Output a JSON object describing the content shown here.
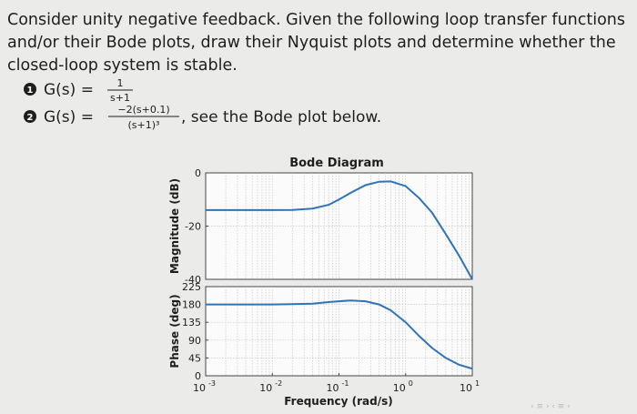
{
  "problem": {
    "lines": [
      "Consider unity negative feedback. Given the following loop transfer functions",
      "and/or their Bode plots, draw their Nyquist plots and determine whether the",
      "closed-loop system is stable."
    ],
    "items": [
      {
        "number": "1",
        "lhs": "G(s) =",
        "numerator": "1",
        "denominator": "s+1",
        "suffix": ""
      },
      {
        "number": "2",
        "lhs": "G(s) =",
        "numerator": "−2(s+0.1)",
        "denominator": "(s+1)³",
        "suffix": ", see the Bode plot below."
      }
    ]
  },
  "chart_data": {
    "type": "line",
    "title": "Bode Diagram",
    "xlabel": "Frequency (rad/s)",
    "x_scale": "log",
    "xlim": [
      0.001,
      10
    ],
    "x_ticks": [
      {
        "base": "10",
        "exp": "-3"
      },
      {
        "base": "10",
        "exp": "-2"
      },
      {
        "base": "10",
        "exp": "-1"
      },
      {
        "base": "10",
        "exp": "0"
      },
      {
        "base": "10",
        "exp": "1"
      }
    ],
    "grid": true,
    "panels": [
      {
        "name": "magnitude",
        "ylabel": "Magnitude (dB)",
        "ylim": [
          -40,
          0
        ],
        "y_ticks": [
          "0",
          "-20",
          "-40"
        ],
        "series": [
          {
            "x": [
              0.001,
              0.003,
              0.01,
              0.02,
              0.04,
              0.07,
              0.1,
              0.15,
              0.25,
              0.4,
              0.6,
              1.0,
              1.6,
              2.5,
              4,
              6.3,
              10
            ],
            "y": [
              -14,
              -14,
              -14,
              -13.9,
              -13.4,
              -12,
              -10,
              -7.5,
              -4.6,
              -3.3,
              -3.2,
              -5,
              -9.5,
              -15,
              -23,
              -31,
              -42
            ]
          }
        ]
      },
      {
        "name": "phase",
        "ylabel": "Phase (deg)",
        "ylim": [
          0,
          225
        ],
        "y_ticks": [
          "0",
          "45",
          "90",
          "135",
          "180",
          "225"
        ],
        "series": [
          {
            "x": [
              0.001,
              0.003,
              0.01,
              0.02,
              0.04,
              0.07,
              0.1,
              0.15,
              0.25,
              0.4,
              0.6,
              1.0,
              1.6,
              2.5,
              4,
              6.3,
              10
            ],
            "y": [
              180,
              180,
              180,
              181,
              182,
              186,
              188,
              190,
              188,
              180,
              165,
              135,
              100,
              70,
              45,
              28,
              18
            ]
          }
        ]
      }
    ]
  }
}
